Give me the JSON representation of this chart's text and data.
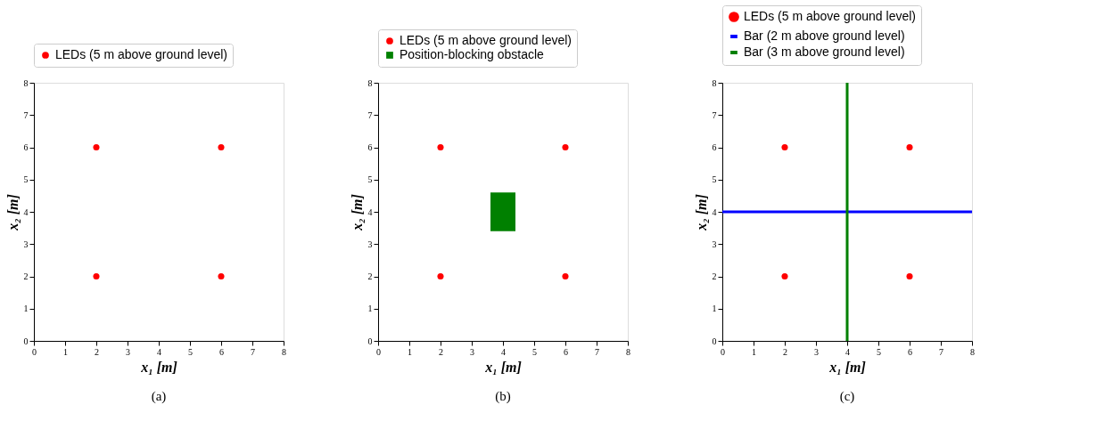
{
  "chart_data": [
    {
      "type": "scatter",
      "xlabel": "x₁ [m]",
      "ylabel": "x₂ [m]",
      "xlim": [
        0,
        8
      ],
      "ylim": [
        0,
        8
      ],
      "xticks": [
        0,
        1,
        2,
        3,
        4,
        5,
        6,
        7,
        8
      ],
      "yticks": [
        0,
        1,
        2,
        3,
        4,
        5,
        6,
        7,
        8
      ],
      "grid": false,
      "legend": "top",
      "annotations": [
        "(a)"
      ],
      "series": [
        {
          "name": "LEDs (5 m above ground level)",
          "color": "#ff0000",
          "marker": "circle",
          "x": [
            2,
            2,
            6,
            6
          ],
          "values": [
            2,
            6,
            2,
            6
          ]
        }
      ]
    },
    {
      "type": "scatter",
      "xlabel": "x₁ [m]",
      "ylabel": "x₂ [m]",
      "xlim": [
        0,
        8
      ],
      "ylim": [
        0,
        8
      ],
      "xticks": [
        0,
        1,
        2,
        3,
        4,
        5,
        6,
        7,
        8
      ],
      "yticks": [
        0,
        1,
        2,
        3,
        4,
        5,
        6,
        7,
        8
      ],
      "grid": false,
      "legend": "top",
      "annotations": [
        "(b)"
      ],
      "series": [
        {
          "name": "LEDs (5 m above ground level)",
          "color": "#ff0000",
          "marker": "circle",
          "x": [
            2,
            2,
            6,
            6
          ],
          "values": [
            2,
            6,
            2,
            6
          ]
        },
        {
          "name": "Position-blocking obstacle",
          "type": "bar",
          "color": "#008000",
          "x": [
            4
          ],
          "values": [
            1.2
          ],
          "base": [
            3.4
          ]
        }
      ]
    },
    {
      "type": "scatter",
      "xlabel": "x₁ [m]",
      "ylabel": "x₂ [m]",
      "xlim": [
        0,
        8
      ],
      "ylim": [
        0,
        8
      ],
      "xticks": [
        0,
        1,
        2,
        3,
        4,
        5,
        6,
        7,
        8
      ],
      "yticks": [
        0,
        1,
        2,
        3,
        4,
        5,
        6,
        7,
        8
      ],
      "grid": false,
      "legend": "top",
      "annotations": [
        "(c)"
      ],
      "series": [
        {
          "name": "LEDs (5 m above ground level)",
          "color": "#ff0000",
          "marker": "circle",
          "x": [
            2,
            2,
            6,
            6
          ],
          "values": [
            2,
            6,
            2,
            6
          ]
        },
        {
          "name": "Bar (2 m above ground level)",
          "type": "line",
          "line_style": "solid",
          "color": "#0000ff",
          "x": [
            0,
            8
          ],
          "values": [
            4,
            4
          ]
        },
        {
          "name": "Bar (3 m above ground level)",
          "type": "line",
          "line_style": "solid",
          "color": "#008000",
          "x": [
            4,
            4
          ],
          "values": [
            0,
            8
          ]
        }
      ]
    }
  ]
}
